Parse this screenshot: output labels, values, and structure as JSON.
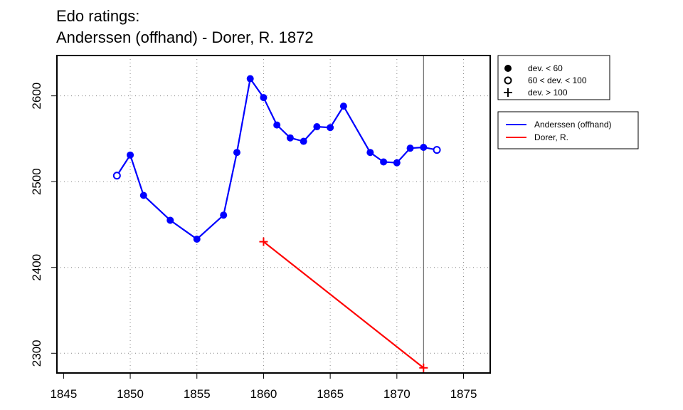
{
  "chart_data": {
    "type": "line",
    "title_lines": [
      "Edo ratings:",
      "Anderssen (offhand) - Dorer, R. 1872"
    ],
    "xlabel": "",
    "ylabel": "",
    "xlim": [
      1844.5,
      1877
    ],
    "ylim": [
      2277,
      2647
    ],
    "x_ticks": [
      1845,
      1850,
      1855,
      1860,
      1865,
      1870,
      1875
    ],
    "y_ticks": [
      2300,
      2400,
      2500,
      2600
    ],
    "x_grid": [
      1850,
      1855,
      1860,
      1865,
      1870,
      1875
    ],
    "y_grid": [
      2300,
      2400,
      2500,
      2600
    ],
    "grid": true,
    "reference_line_x": 1872,
    "marker_legend": [
      {
        "label": "dev. < 60",
        "marker": "filled"
      },
      {
        "label": "60 < dev. < 100",
        "marker": "open"
      },
      {
        "label": "dev. > 100",
        "marker": "plus"
      }
    ],
    "series": [
      {
        "name": "Anderssen (offhand)",
        "color": "#0000ff",
        "points": [
          {
            "x": 1849,
            "y": 2507,
            "dev": "open"
          },
          {
            "x": 1850,
            "y": 2531,
            "dev": "filled"
          },
          {
            "x": 1851,
            "y": 2484,
            "dev": "filled"
          },
          {
            "x": 1853,
            "y": 2455,
            "dev": "filled"
          },
          {
            "x": 1855,
            "y": 2433,
            "dev": "filled"
          },
          {
            "x": 1857,
            "y": 2461,
            "dev": "filled"
          },
          {
            "x": 1858,
            "y": 2534,
            "dev": "filled"
          },
          {
            "x": 1859,
            "y": 2620,
            "dev": "filled"
          },
          {
            "x": 1860,
            "y": 2598,
            "dev": "filled"
          },
          {
            "x": 1861,
            "y": 2566,
            "dev": "filled"
          },
          {
            "x": 1862,
            "y": 2551,
            "dev": "filled"
          },
          {
            "x": 1863,
            "y": 2547,
            "dev": "filled"
          },
          {
            "x": 1864,
            "y": 2564,
            "dev": "filled"
          },
          {
            "x": 1865,
            "y": 2563,
            "dev": "filled"
          },
          {
            "x": 1866,
            "y": 2588,
            "dev": "filled"
          },
          {
            "x": 1868,
            "y": 2534,
            "dev": "filled"
          },
          {
            "x": 1869,
            "y": 2523,
            "dev": "filled"
          },
          {
            "x": 1870,
            "y": 2522,
            "dev": "filled"
          },
          {
            "x": 1871,
            "y": 2539,
            "dev": "filled"
          },
          {
            "x": 1872,
            "y": 2540,
            "dev": "filled"
          },
          {
            "x": 1873,
            "y": 2537,
            "dev": "open"
          }
        ]
      },
      {
        "name": "Dorer, R.",
        "color": "#ff0000",
        "points": [
          {
            "x": 1860,
            "y": 2430,
            "dev": "plus"
          },
          {
            "x": 1872,
            "y": 2283,
            "dev": "plus"
          }
        ]
      }
    ]
  }
}
